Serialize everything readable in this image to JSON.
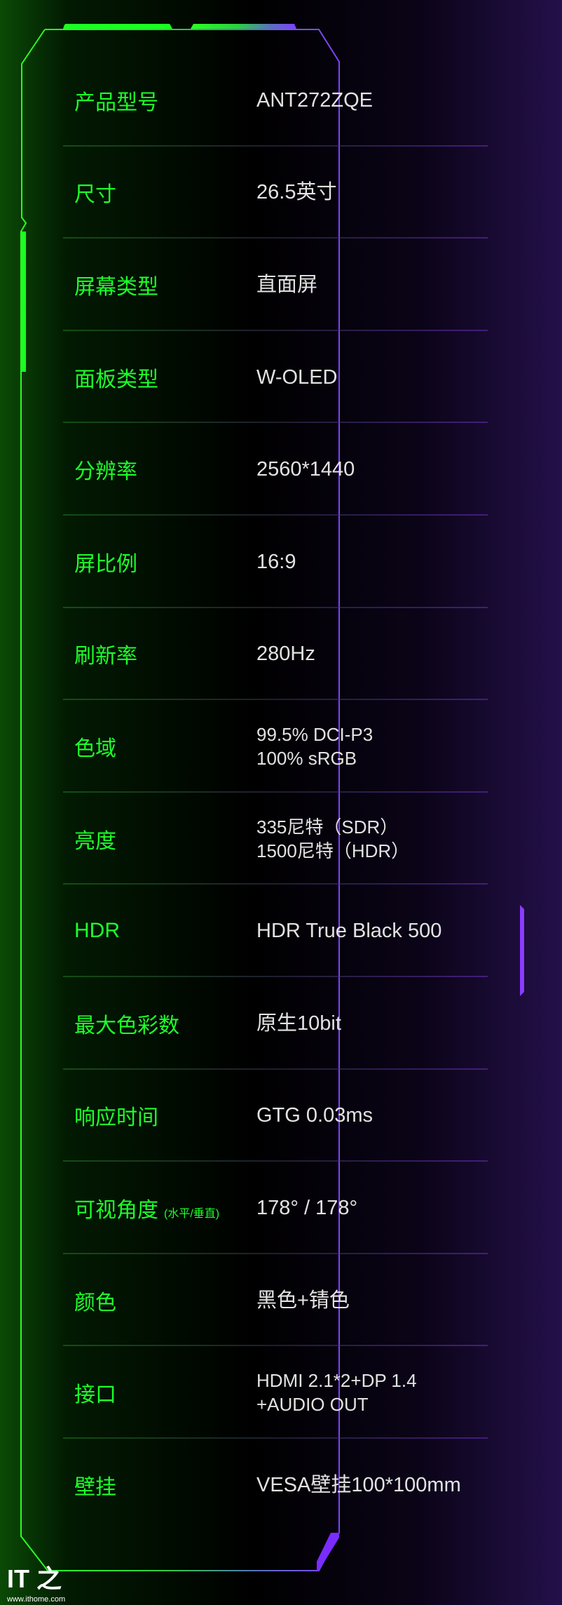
{
  "specs": [
    {
      "label": "产品型号",
      "value": [
        "ANT272ZQE"
      ]
    },
    {
      "label": "尺寸",
      "value": [
        "26.5英寸"
      ]
    },
    {
      "label": "屏幕类型",
      "value": [
        "直面屏"
      ]
    },
    {
      "label": "面板类型",
      "value": [
        "W-OLED"
      ]
    },
    {
      "label": "分辨率",
      "value": [
        "2560*1440"
      ]
    },
    {
      "label": "屏比例",
      "value": [
        "16:9"
      ]
    },
    {
      "label": "刷新率",
      "value": [
        "280Hz"
      ]
    },
    {
      "label": "色域",
      "value": [
        "99.5% DCI-P3",
        "100% sRGB"
      ]
    },
    {
      "label": "亮度",
      "value": [
        "335尼特（SDR）",
        "1500尼特（HDR）"
      ]
    },
    {
      "label": "HDR",
      "value": [
        "HDR  True Black 500"
      ]
    },
    {
      "label": "最大色彩数",
      "value": [
        "原生10bit"
      ]
    },
    {
      "label": "响应时间",
      "value": [
        "GTG 0.03ms"
      ]
    },
    {
      "label": "可视角度",
      "sublabel": "(水平/垂直)",
      "value": [
        "178° / 178°"
      ]
    },
    {
      "label": "颜色",
      "value": [
        "黑色+锖色"
      ]
    },
    {
      "label": "接口",
      "value": [
        "HDMI 2.1*2+DP 1.4",
        "+AUDIO OUT"
      ]
    },
    {
      "label": "壁挂",
      "value": [
        "VESA壁挂100*100mm"
      ]
    }
  ],
  "watermark": {
    "logo": "IT之家",
    "url": "www.ithome.com"
  },
  "colors": {
    "label": "#1dff2a",
    "value": "#e2e2e2",
    "accent_purple": "#7a2cff"
  }
}
